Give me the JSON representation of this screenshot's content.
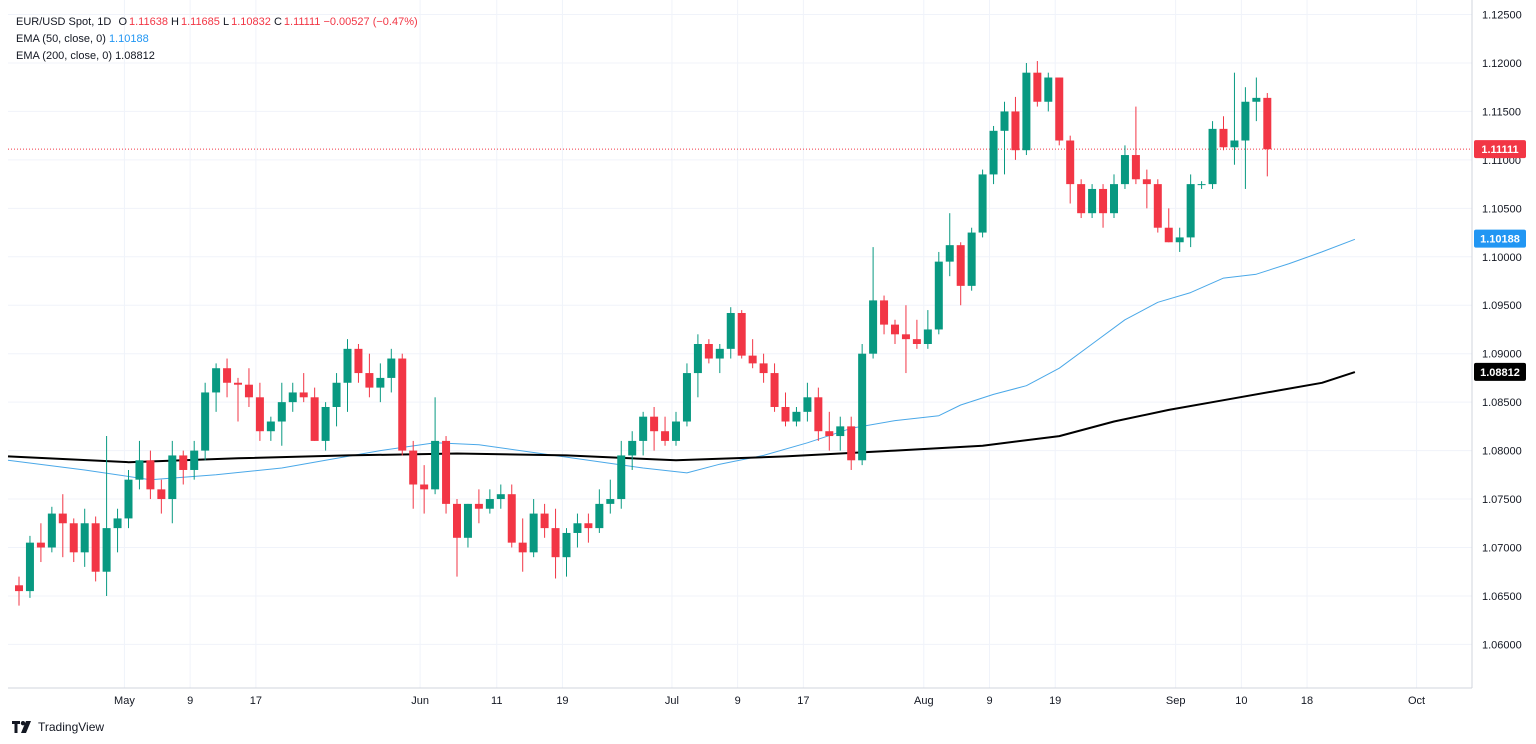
{
  "legend": {
    "symbol": "EUR/USD Spot, 1D",
    "o_label": "O",
    "o": "1.11638",
    "h_label": "H",
    "h": "1.11685",
    "l_label": "L",
    "l": "1.10832",
    "c_label": "C",
    "c": "1.11111",
    "change": "−0.00527 (−0.47%)",
    "ema50_label": "EMA (50, close, 0)",
    "ema50_value": "1.10188",
    "ema200_label": "EMA (200, close, 0)",
    "ema200_value": "1.08812"
  },
  "brand": {
    "name": "TradingView",
    "icon": "tradingview-logo-icon"
  },
  "colors": {
    "up": "#089981",
    "down": "#f23645",
    "ema50": "#4aa8e8",
    "ema200": "#000000",
    "grid": "#f0f3fa",
    "axis_text": "#131722"
  },
  "chart_data": {
    "type": "candlestick",
    "y_axis": {
      "ticks": [
        "1.12500",
        "1.12000",
        "1.11500",
        "1.11000",
        "1.10500",
        "1.10000",
        "1.09500",
        "1.09000",
        "1.08500",
        "1.08000",
        "1.07500",
        "1.07000",
        "1.06500",
        "1.06000"
      ],
      "range": [
        1.0555,
        1.1265
      ]
    },
    "x_axis": {
      "ticks": [
        {
          "label": "May",
          "index": 11
        },
        {
          "label": "9",
          "index": 17
        },
        {
          "label": "17",
          "index": 23
        },
        {
          "label": "Jun",
          "index": 38
        },
        {
          "label": "11",
          "index": 45
        },
        {
          "label": "19",
          "index": 51
        },
        {
          "label": "Jul",
          "index": 61
        },
        {
          "label": "9",
          "index": 67
        },
        {
          "label": "17",
          "index": 73
        },
        {
          "label": "Aug",
          "index": 84
        },
        {
          "label": "9",
          "index": 90
        },
        {
          "label": "19",
          "index": 96
        },
        {
          "label": "Sep",
          "index": 107
        },
        {
          "label": "10",
          "index": 113
        },
        {
          "label": "18",
          "index": 119
        },
        {
          "label": "Oct",
          "index": 129
        }
      ]
    },
    "last_price": "1.11111",
    "ema50_tag": "1.10188",
    "ema200_tag": "1.08812",
    "candles": [
      [
        1.0661,
        1.067,
        1.064,
        1.0655
      ],
      [
        1.0655,
        1.0712,
        1.0648,
        1.0705
      ],
      [
        1.0705,
        1.0725,
        1.0685,
        1.07
      ],
      [
        1.07,
        1.0742,
        1.0695,
        1.0735
      ],
      [
        1.0735,
        1.0755,
        1.069,
        1.0725
      ],
      [
        1.0725,
        1.073,
        1.0685,
        1.0695
      ],
      [
        1.0695,
        1.074,
        1.068,
        1.0725
      ],
      [
        1.0725,
        1.0732,
        1.0665,
        1.0675
      ],
      [
        1.0675,
        1.0815,
        1.065,
        1.072
      ],
      [
        1.072,
        1.074,
        1.0695,
        1.073
      ],
      [
        1.073,
        1.078,
        1.072,
        1.077
      ],
      [
        1.077,
        1.081,
        1.076,
        1.079
      ],
      [
        1.079,
        1.08,
        1.075,
        1.076
      ],
      [
        1.076,
        1.077,
        1.0735,
        1.075
      ],
      [
        1.075,
        1.081,
        1.0725,
        1.0795
      ],
      [
        1.0795,
        1.08,
        1.0765,
        1.078
      ],
      [
        1.078,
        1.081,
        1.077,
        1.08
      ],
      [
        1.08,
        1.087,
        1.079,
        1.086
      ],
      [
        1.086,
        1.089,
        1.084,
        1.0885
      ],
      [
        1.0885,
        1.0895,
        1.0855,
        1.087
      ],
      [
        1.087,
        1.0875,
        1.083,
        1.0868
      ],
      [
        1.0868,
        1.0885,
        1.0845,
        1.0855
      ],
      [
        1.0855,
        1.087,
        1.081,
        1.082
      ],
      [
        1.082,
        1.0835,
        1.081,
        1.083
      ],
      [
        1.083,
        1.087,
        1.0805,
        1.085
      ],
      [
        1.085,
        1.087,
        1.084,
        1.086
      ],
      [
        1.086,
        1.088,
        1.085,
        1.0855
      ],
      [
        1.0855,
        1.0865,
        1.081,
        1.081
      ],
      [
        1.081,
        1.085,
        1.08,
        1.0845
      ],
      [
        1.0845,
        1.088,
        1.0825,
        1.087
      ],
      [
        1.087,
        1.0915,
        1.084,
        1.0905
      ],
      [
        1.0905,
        1.091,
        1.087,
        1.088
      ],
      [
        1.088,
        1.09,
        1.0855,
        1.0865
      ],
      [
        1.0865,
        1.089,
        1.085,
        1.0875
      ],
      [
        1.0875,
        1.0905,
        1.086,
        1.0895
      ],
      [
        1.0895,
        1.09,
        1.0795,
        1.08
      ],
      [
        1.08,
        1.081,
        1.074,
        1.0765
      ],
      [
        1.0765,
        1.0785,
        1.0735,
        1.076
      ],
      [
        1.076,
        1.0855,
        1.0755,
        1.081
      ],
      [
        1.081,
        1.0815,
        1.0735,
        1.0745
      ],
      [
        1.0745,
        1.075,
        1.067,
        1.071
      ],
      [
        1.071,
        1.0745,
        1.07,
        1.0745
      ],
      [
        1.0745,
        1.076,
        1.0725,
        1.074
      ],
      [
        1.074,
        1.076,
        1.0735,
        1.075
      ],
      [
        1.075,
        1.0765,
        1.074,
        1.0755
      ],
      [
        1.0755,
        1.0765,
        1.07,
        1.0705
      ],
      [
        1.0705,
        1.073,
        1.0675,
        1.0695
      ],
      [
        1.0695,
        1.075,
        1.069,
        1.0735
      ],
      [
        1.0735,
        1.0745,
        1.071,
        1.072
      ],
      [
        1.072,
        1.074,
        1.0668,
        1.069
      ],
      [
        1.069,
        1.072,
        1.067,
        1.0715
      ],
      [
        1.0715,
        1.0735,
        1.07,
        1.0725
      ],
      [
        1.0725,
        1.0735,
        1.0705,
        1.072
      ],
      [
        1.072,
        1.076,
        1.0715,
        1.0745
      ],
      [
        1.0745,
        1.077,
        1.0735,
        1.075
      ],
      [
        1.075,
        1.081,
        1.074,
        1.0795
      ],
      [
        1.0795,
        1.082,
        1.078,
        1.081
      ],
      [
        1.081,
        1.084,
        1.0795,
        1.0835
      ],
      [
        1.0835,
        1.0845,
        1.08,
        1.082
      ],
      [
        1.082,
        1.0835,
        1.0805,
        1.081
      ],
      [
        1.081,
        1.084,
        1.0805,
        1.083
      ],
      [
        1.083,
        1.089,
        1.0825,
        1.088
      ],
      [
        1.088,
        1.092,
        1.0855,
        1.091
      ],
      [
        1.091,
        1.0915,
        1.089,
        1.0895
      ],
      [
        1.0895,
        1.091,
        1.088,
        1.0905
      ],
      [
        1.0905,
        1.0948,
        1.0895,
        1.0942
      ],
      [
        1.0942,
        1.0945,
        1.0895,
        1.0898
      ],
      [
        1.0898,
        1.0915,
        1.0885,
        1.089
      ],
      [
        1.089,
        1.09,
        1.087,
        1.088
      ],
      [
        1.088,
        1.089,
        1.084,
        1.0845
      ],
      [
        1.0845,
        1.086,
        1.0825,
        1.083
      ],
      [
        1.083,
        1.0845,
        1.0825,
        1.084
      ],
      [
        1.084,
        1.087,
        1.083,
        1.0855
      ],
      [
        1.0855,
        1.0865,
        1.081,
        1.082
      ],
      [
        1.082,
        1.084,
        1.08,
        1.0815
      ],
      [
        1.0815,
        1.0835,
        1.08,
        1.0825
      ],
      [
        1.0825,
        1.0835,
        1.078,
        1.079
      ],
      [
        1.079,
        1.091,
        1.0785,
        1.09
      ],
      [
        1.09,
        1.101,
        1.0895,
        1.0955
      ],
      [
        1.0955,
        1.096,
        1.092,
        1.093
      ],
      [
        1.093,
        1.0935,
        1.091,
        1.092
      ],
      [
        1.092,
        1.095,
        1.088,
        1.0915
      ],
      [
        1.0915,
        1.0935,
        1.0905,
        1.091
      ],
      [
        1.091,
        1.0945,
        1.0905,
        1.0925
      ],
      [
        1.0925,
        1.1005,
        1.092,
        1.0995
      ],
      [
        1.0995,
        1.1045,
        1.098,
        1.1012
      ],
      [
        1.1012,
        1.1015,
        1.095,
        1.097
      ],
      [
        1.097,
        1.103,
        1.0965,
        1.1025
      ],
      [
        1.1025,
        1.109,
        1.102,
        1.1085
      ],
      [
        1.1085,
        1.1135,
        1.1075,
        1.113
      ],
      [
        1.113,
        1.116,
        1.1085,
        1.115
      ],
      [
        1.115,
        1.1165,
        1.11,
        1.111
      ],
      [
        1.111,
        1.12,
        1.1105,
        1.119
      ],
      [
        1.119,
        1.1202,
        1.1155,
        1.116
      ],
      [
        1.116,
        1.119,
        1.115,
        1.1185
      ],
      [
        1.1185,
        1.1185,
        1.1115,
        1.112
      ],
      [
        1.112,
        1.1125,
        1.1055,
        1.1075
      ],
      [
        1.1075,
        1.108,
        1.104,
        1.1045
      ],
      [
        1.1045,
        1.1075,
        1.104,
        1.107
      ],
      [
        1.107,
        1.1075,
        1.103,
        1.1045
      ],
      [
        1.1045,
        1.1085,
        1.104,
        1.1075
      ],
      [
        1.1075,
        1.1115,
        1.107,
        1.1105
      ],
      [
        1.1105,
        1.1155,
        1.1075,
        1.108
      ],
      [
        1.108,
        1.109,
        1.105,
        1.1075
      ],
      [
        1.1075,
        1.108,
        1.1025,
        1.103
      ],
      [
        1.103,
        1.105,
        1.1015,
        1.1015
      ],
      [
        1.1015,
        1.103,
        1.1005,
        1.102
      ],
      [
        1.102,
        1.1085,
        1.101,
        1.1075
      ],
      [
        1.1075,
        1.1078,
        1.107,
        1.1075
      ],
      [
        1.1075,
        1.114,
        1.107,
        1.1132
      ],
      [
        1.1132,
        1.1145,
        1.111,
        1.1113
      ],
      [
        1.1113,
        1.119,
        1.1095,
        1.112
      ],
      [
        1.112,
        1.1175,
        1.107,
        1.116
      ],
      [
        1.116,
        1.1185,
        1.114,
        1.1164
      ],
      [
        1.1164,
        1.1169,
        1.1083,
        1.1111
      ]
    ],
    "ema50": [
      [
        0,
        1.079
      ],
      [
        6,
        1.078
      ],
      [
        12,
        1.077
      ],
      [
        18,
        1.0775
      ],
      [
        24,
        1.0782
      ],
      [
        28,
        1.079
      ],
      [
        33,
        1.08
      ],
      [
        38,
        1.0808
      ],
      [
        42,
        1.0806
      ],
      [
        47,
        1.0798
      ],
      [
        52,
        1.079
      ],
      [
        57,
        1.0782
      ],
      [
        61,
        1.0777
      ],
      [
        64,
        1.0786
      ],
      [
        68,
        1.0795
      ],
      [
        72,
        1.0808
      ],
      [
        76,
        1.0823
      ],
      [
        80,
        1.0831
      ],
      [
        84,
        1.0836
      ],
      [
        86,
        1.0847
      ],
      [
        89,
        1.0858
      ],
      [
        92,
        1.0867
      ],
      [
        95,
        1.0885
      ],
      [
        98,
        1.091
      ],
      [
        101,
        1.0935
      ],
      [
        104,
        1.0953
      ],
      [
        107,
        1.0963
      ],
      [
        110,
        1.0978
      ],
      [
        113,
        1.0982
      ],
      [
        116,
        1.0993
      ],
      [
        119,
        1.1005
      ],
      [
        122,
        1.1018
      ]
    ],
    "ema200": [
      [
        0,
        1.0794
      ],
      [
        10,
        1.0788
      ],
      [
        20,
        1.0792
      ],
      [
        30,
        1.0795
      ],
      [
        40,
        1.0797
      ],
      [
        50,
        1.0795
      ],
      [
        60,
        1.079
      ],
      [
        70,
        1.0794
      ],
      [
        80,
        1.08
      ],
      [
        88,
        1.0805
      ],
      [
        95,
        1.0815
      ],
      [
        100,
        1.083
      ],
      [
        105,
        1.0842
      ],
      [
        110,
        1.0852
      ],
      [
        115,
        1.0862
      ],
      [
        119,
        1.087
      ],
      [
        122,
        1.0881
      ]
    ]
  }
}
